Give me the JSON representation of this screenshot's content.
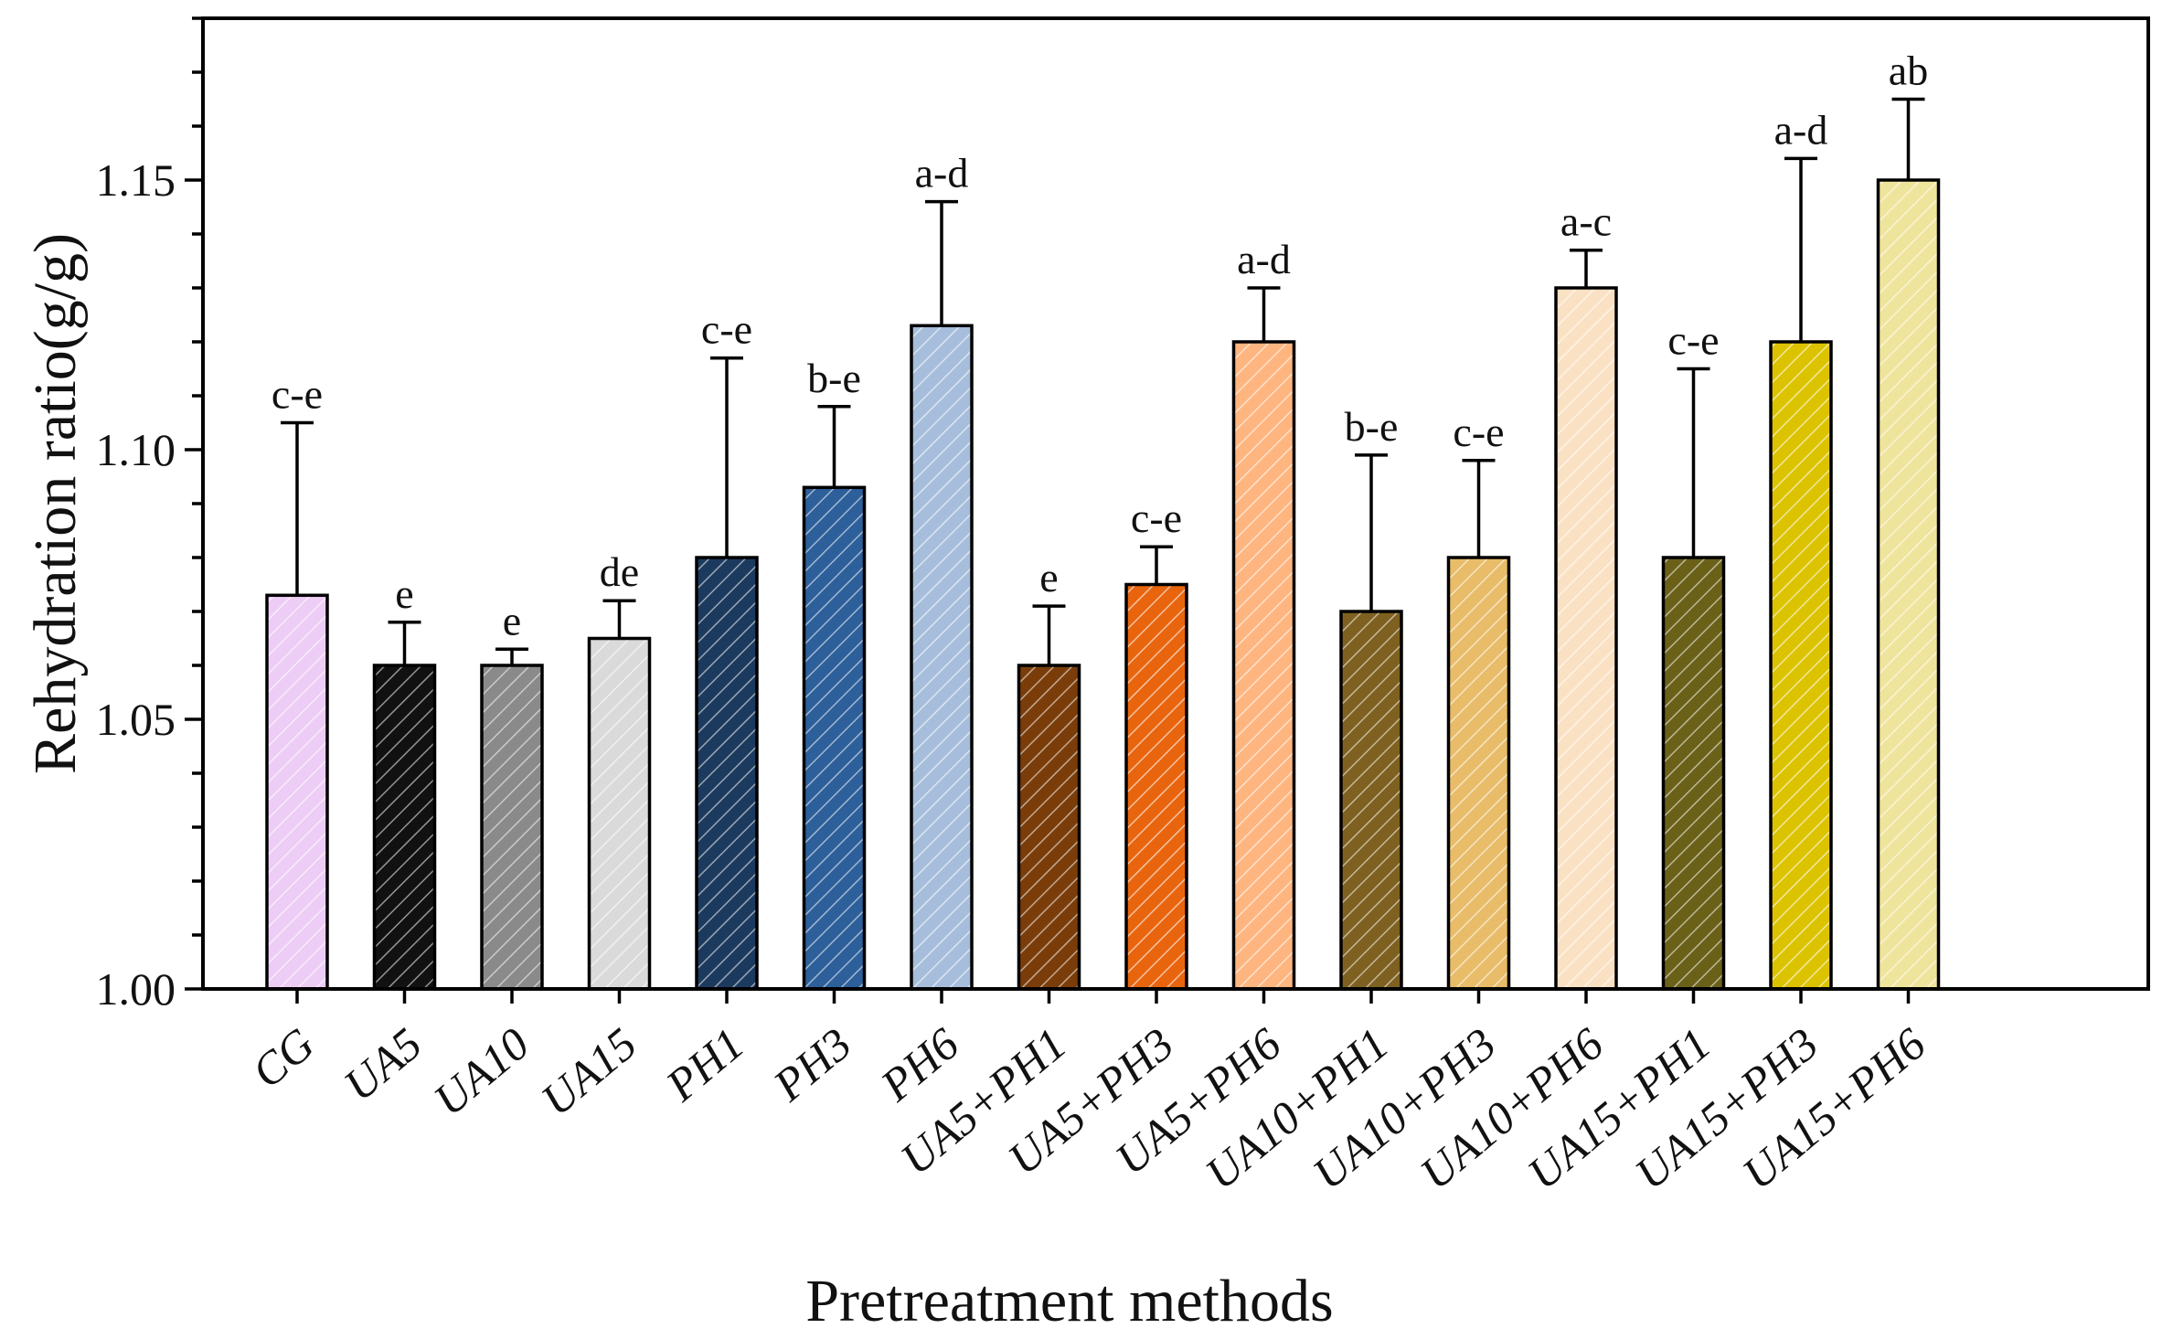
{
  "chart_data": {
    "type": "bar",
    "title": "",
    "xlabel": "Pretreatment methods",
    "ylabel": "Rehydration ratio(g/g)",
    "ylim": [
      1.0,
      1.18
    ],
    "yticks": [
      1.0,
      1.05,
      1.1,
      1.15
    ],
    "ytick_labels": [
      "1.00",
      "1.05",
      "1.10",
      "1.15"
    ],
    "grid": false,
    "legend": "none",
    "categories": [
      "CG",
      "UA5",
      "UA10",
      "UA15",
      "PH1",
      "PH3",
      "PH6",
      "UA5+PH1",
      "UA5+PH3",
      "UA5+PH6",
      "UA10+PH1",
      "UA10+PH3",
      "UA10+PH6",
      "UA15+PH1",
      "UA15+PH3",
      "UA15+PH6"
    ],
    "values": [
      1.073,
      1.06,
      1.06,
      1.065,
      1.08,
      1.093,
      1.123,
      1.06,
      1.075,
      1.12,
      1.07,
      1.08,
      1.13,
      1.08,
      1.12,
      1.15
    ],
    "errors": [
      0.032,
      0.008,
      0.003,
      0.007,
      0.037,
      0.015,
      0.023,
      0.011,
      0.007,
      0.01,
      0.029,
      0.018,
      0.007,
      0.035,
      0.034,
      0.015
    ],
    "significance": [
      "c-e",
      "e",
      "e",
      "de",
      "c-e",
      "b-e",
      "a-d",
      "e",
      "c-e",
      "a-d",
      "b-e",
      "c-e",
      "a-c",
      "c-e",
      "a-d",
      "ab"
    ],
    "colors": [
      "#EDCCF5",
      "#111111",
      "#8A8A8A",
      "#DADADA",
      "#1C3A5E",
      "#2D5F9A",
      "#A6BEDB",
      "#7A3D0A",
      "#E8650E",
      "#FFB57F",
      "#7E6020",
      "#E8BC68",
      "#FBE1C3",
      "#6A6018",
      "#DCC300",
      "#EFE49B"
    ]
  }
}
